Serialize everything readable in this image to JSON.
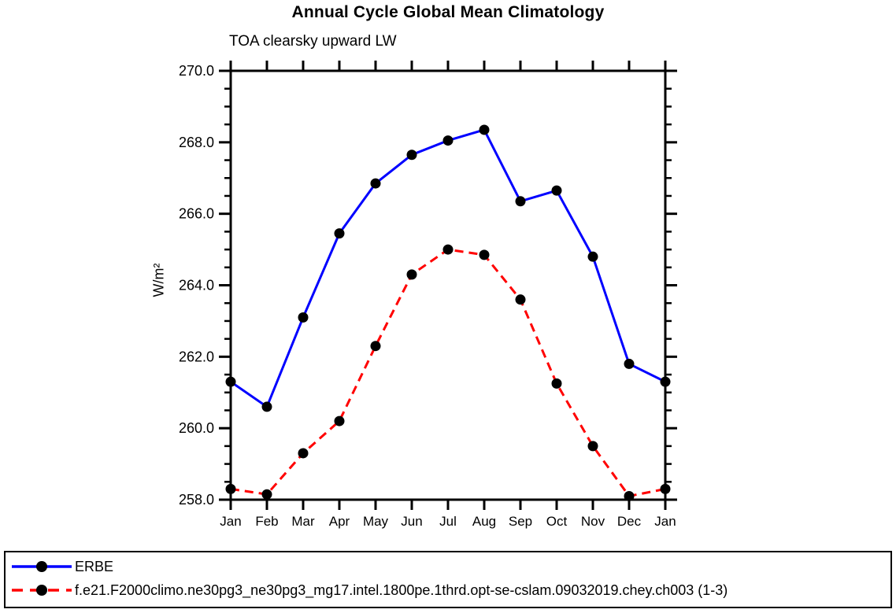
{
  "page": {
    "background": "#ffffff",
    "text_color": "#000000"
  },
  "chart_data": {
    "type": "line",
    "title": "Annual Cycle Global Mean Climatology",
    "subtitle": "TOA clearsky upward LW",
    "xlabel": "",
    "ylabel": "W/m²",
    "categories": [
      "Jan",
      "Feb",
      "Mar",
      "Apr",
      "May",
      "Jun",
      "Jul",
      "Aug",
      "Sep",
      "Oct",
      "Nov",
      "Dec",
      "Jan"
    ],
    "ylim": [
      258.0,
      270.0
    ],
    "ytick_major_interval": 2.0,
    "ytick_minor_interval": 0.5,
    "ytick_labels": [
      "270.0",
      "268.0",
      "266.0",
      "264.0",
      "262.0",
      "260.0",
      "258.0"
    ],
    "grid": false,
    "legend_position": "bottom box, full width",
    "marker": "filled-circle",
    "marker_color": "#000000",
    "axis_color": "#000000",
    "series": [
      {
        "name": "ERBE",
        "color": "#0000ff",
        "line_style": "solid",
        "values": [
          261.3,
          260.6,
          263.1,
          265.45,
          266.85,
          267.65,
          268.05,
          268.35,
          266.35,
          266.65,
          264.8,
          261.8,
          261.3
        ]
      },
      {
        "name": "f.e21.F2000climo.ne30pg3_ne30pg3_mg17.intel.1800pe.1thrd.opt-se-cslam.09032019.chey.ch003 (1-3)",
        "color": "#ff0000",
        "line_style": "dashed",
        "values": [
          258.3,
          258.15,
          259.3,
          260.2,
          262.3,
          264.3,
          265.0,
          264.85,
          263.6,
          261.25,
          259.5,
          258.1,
          258.3
        ]
      }
    ]
  }
}
